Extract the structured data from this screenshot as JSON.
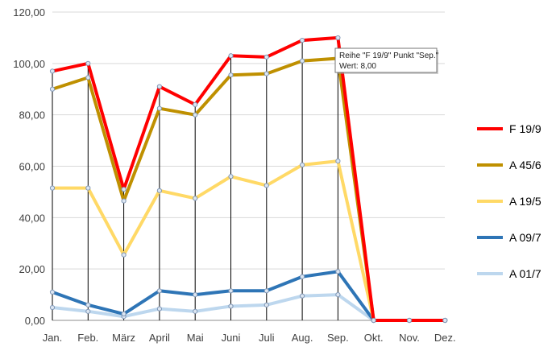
{
  "chart_data": {
    "type": "line",
    "categories": [
      "Jan.",
      "Feb.",
      "März",
      "April",
      "Mai",
      "Juni",
      "Juli",
      "Aug.",
      "Sep.",
      "Okt.",
      "Nov.",
      "Dez."
    ],
    "ylim": [
      0,
      120
    ],
    "yticks": [
      "0,00",
      "20,00",
      "40,00",
      "60,00",
      "80,00",
      "100,00",
      "120,00"
    ],
    "grid": true,
    "legend_position": "right",
    "drop_lines": true,
    "series": [
      {
        "name": "A 01/7",
        "color": "#bdd7ee",
        "values": [
          5.0,
          3.5,
          1.5,
          4.5,
          3.5,
          5.5,
          6.0,
          9.5,
          10.0,
          0,
          0,
          0
        ]
      },
      {
        "name": "A 09/7",
        "color": "#2e75b6",
        "values": [
          11.0,
          6.0,
          2.5,
          11.5,
          10.0,
          11.5,
          11.5,
          17.0,
          19.0,
          0,
          0,
          0
        ]
      },
      {
        "name": "A 19/5",
        "color": "#ffd966",
        "values": [
          51.5,
          51.5,
          25.5,
          50.5,
          47.5,
          56.0,
          52.5,
          60.5,
          62.0,
          0,
          0,
          0
        ]
      },
      {
        "name": "A 45/6",
        "color": "#bf9000",
        "values": [
          90.0,
          94.5,
          46.5,
          82.5,
          80.0,
          95.5,
          96.0,
          101.0,
          102.0,
          0,
          0,
          0
        ]
      },
      {
        "name": "F 19/9",
        "color": "#ff0000",
        "values": [
          97.0,
          100.0,
          51.0,
          91.0,
          84.0,
          103.0,
          102.5,
          109.0,
          110.0,
          0,
          0,
          0
        ]
      }
    ],
    "legend_order": [
      "F 19/9",
      "A 45/6",
      "A 19/5",
      "A 09/7",
      "A 01/7"
    ],
    "tooltip": {
      "line1": "Reihe \"F 19/9\" Punkt \"Sep.\"",
      "line2": "Wert: 8,00"
    }
  }
}
